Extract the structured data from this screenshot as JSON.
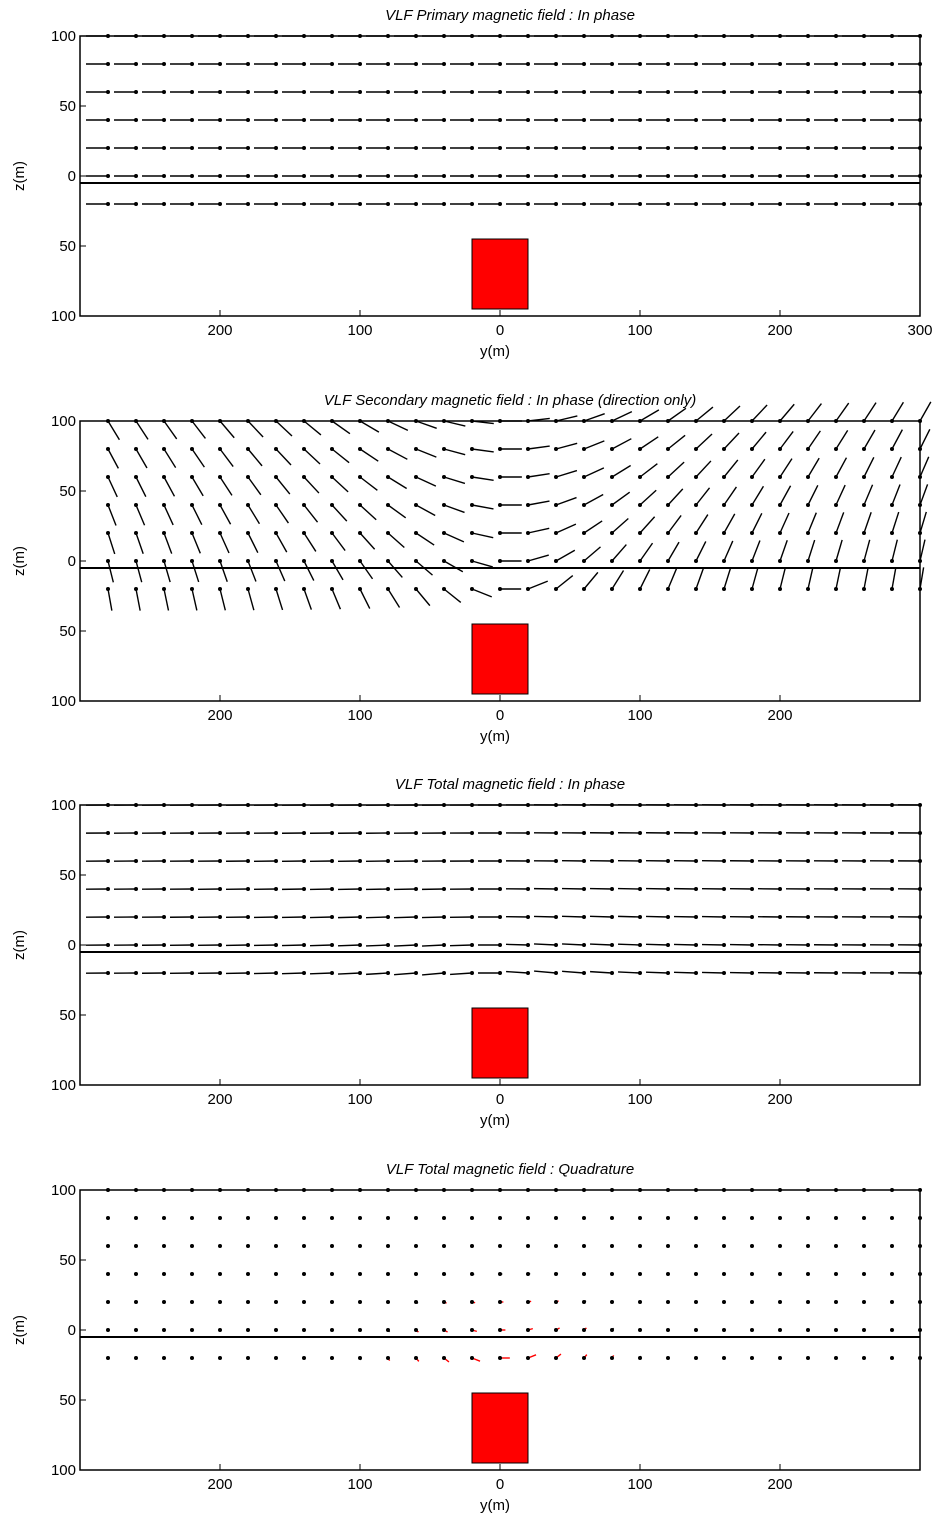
{
  "chart_data": [
    {
      "type": "quiver",
      "title": "VLF Primary magnetic field : In phase",
      "xlabel": "y(m)",
      "ylabel": "z(m)",
      "xlim": [
        -300,
        300
      ],
      "ylim": [
        -100,
        100
      ],
      "x_tick_values": [
        -200,
        -100,
        0,
        100,
        200,
        300
      ],
      "x_tick_labels": [
        "200",
        "100",
        "0",
        "100",
        "200",
        "300"
      ],
      "y_tick_values": [
        -100,
        -50,
        0,
        50,
        100
      ],
      "y_tick_labels": [
        "100",
        "50",
        "0",
        "50",
        "100"
      ],
      "ground_z": -5,
      "body": {
        "y": [
          -20,
          20
        ],
        "z": [
          -95,
          -45
        ],
        "color": "#ff0000"
      },
      "grid_rows_z": [
        100,
        80,
        60,
        40,
        20,
        0,
        -20
      ],
      "grid_spacing_y": 20,
      "field": "primary",
      "arrow_color": "#000000"
    },
    {
      "type": "quiver",
      "title": "VLF Secondary magnetic field : In phase   (direction only)",
      "xlabel": "y(m)",
      "ylabel": "z(m)",
      "xlim": [
        -300,
        300
      ],
      "ylim": [
        -100,
        100
      ],
      "x_tick_values": [
        -200,
        -100,
        0,
        100,
        200
      ],
      "x_tick_labels": [
        "200",
        "100",
        "0",
        "100",
        "200"
      ],
      "y_tick_values": [
        -100,
        -50,
        0,
        50,
        100
      ],
      "y_tick_labels": [
        "100",
        "50",
        "0",
        "50",
        "100"
      ],
      "ground_z": -5,
      "body": {
        "y": [
          -20,
          20
        ],
        "z": [
          -95,
          -45
        ],
        "color": "#ff0000"
      },
      "grid_rows_z": [
        100,
        80,
        60,
        40,
        20,
        0,
        -20
      ],
      "grid_spacing_y": 20,
      "field": "secondary",
      "arrow_color": "#000000"
    },
    {
      "type": "quiver",
      "title": "VLF Total magnetic field : In phase",
      "xlabel": "y(m)",
      "ylabel": "z(m)",
      "xlim": [
        -300,
        300
      ],
      "ylim": [
        -100,
        100
      ],
      "x_tick_values": [
        -200,
        -100,
        0,
        100,
        200
      ],
      "x_tick_labels": [
        "200",
        "100",
        "0",
        "100",
        "200"
      ],
      "y_tick_values": [
        -100,
        -50,
        0,
        50,
        100
      ],
      "y_tick_labels": [
        "100",
        "50",
        "0",
        "50",
        "100"
      ],
      "ground_z": -5,
      "body": {
        "y": [
          -20,
          20
        ],
        "z": [
          -95,
          -45
        ],
        "color": "#ff0000"
      },
      "grid_rows_z": [
        100,
        80,
        60,
        40,
        20,
        0,
        -20
      ],
      "grid_spacing_y": 20,
      "field": "total_inphase",
      "arrow_color": "#000000"
    },
    {
      "type": "quiver",
      "title": "VLF Total magnetic field : Quadrature",
      "xlabel": "y(m)",
      "ylabel": "z(m)",
      "xlim": [
        -300,
        300
      ],
      "ylim": [
        -100,
        100
      ],
      "x_tick_values": [
        -200,
        -100,
        0,
        100,
        200
      ],
      "x_tick_labels": [
        "200",
        "100",
        "0",
        "100",
        "200"
      ],
      "y_tick_values": [
        -100,
        -50,
        0,
        50,
        100
      ],
      "y_tick_labels": [
        "100",
        "50",
        "0",
        "50",
        "100"
      ],
      "ground_z": -5,
      "body": {
        "y": [
          -20,
          20
        ],
        "z": [
          -95,
          -45
        ],
        "color": "#ff0000"
      },
      "grid_rows_z": [
        100,
        80,
        60,
        40,
        20,
        0,
        -20
      ],
      "grid_spacing_y": 20,
      "field": "total_quadrature",
      "arrow_color": "#ff0000"
    }
  ]
}
